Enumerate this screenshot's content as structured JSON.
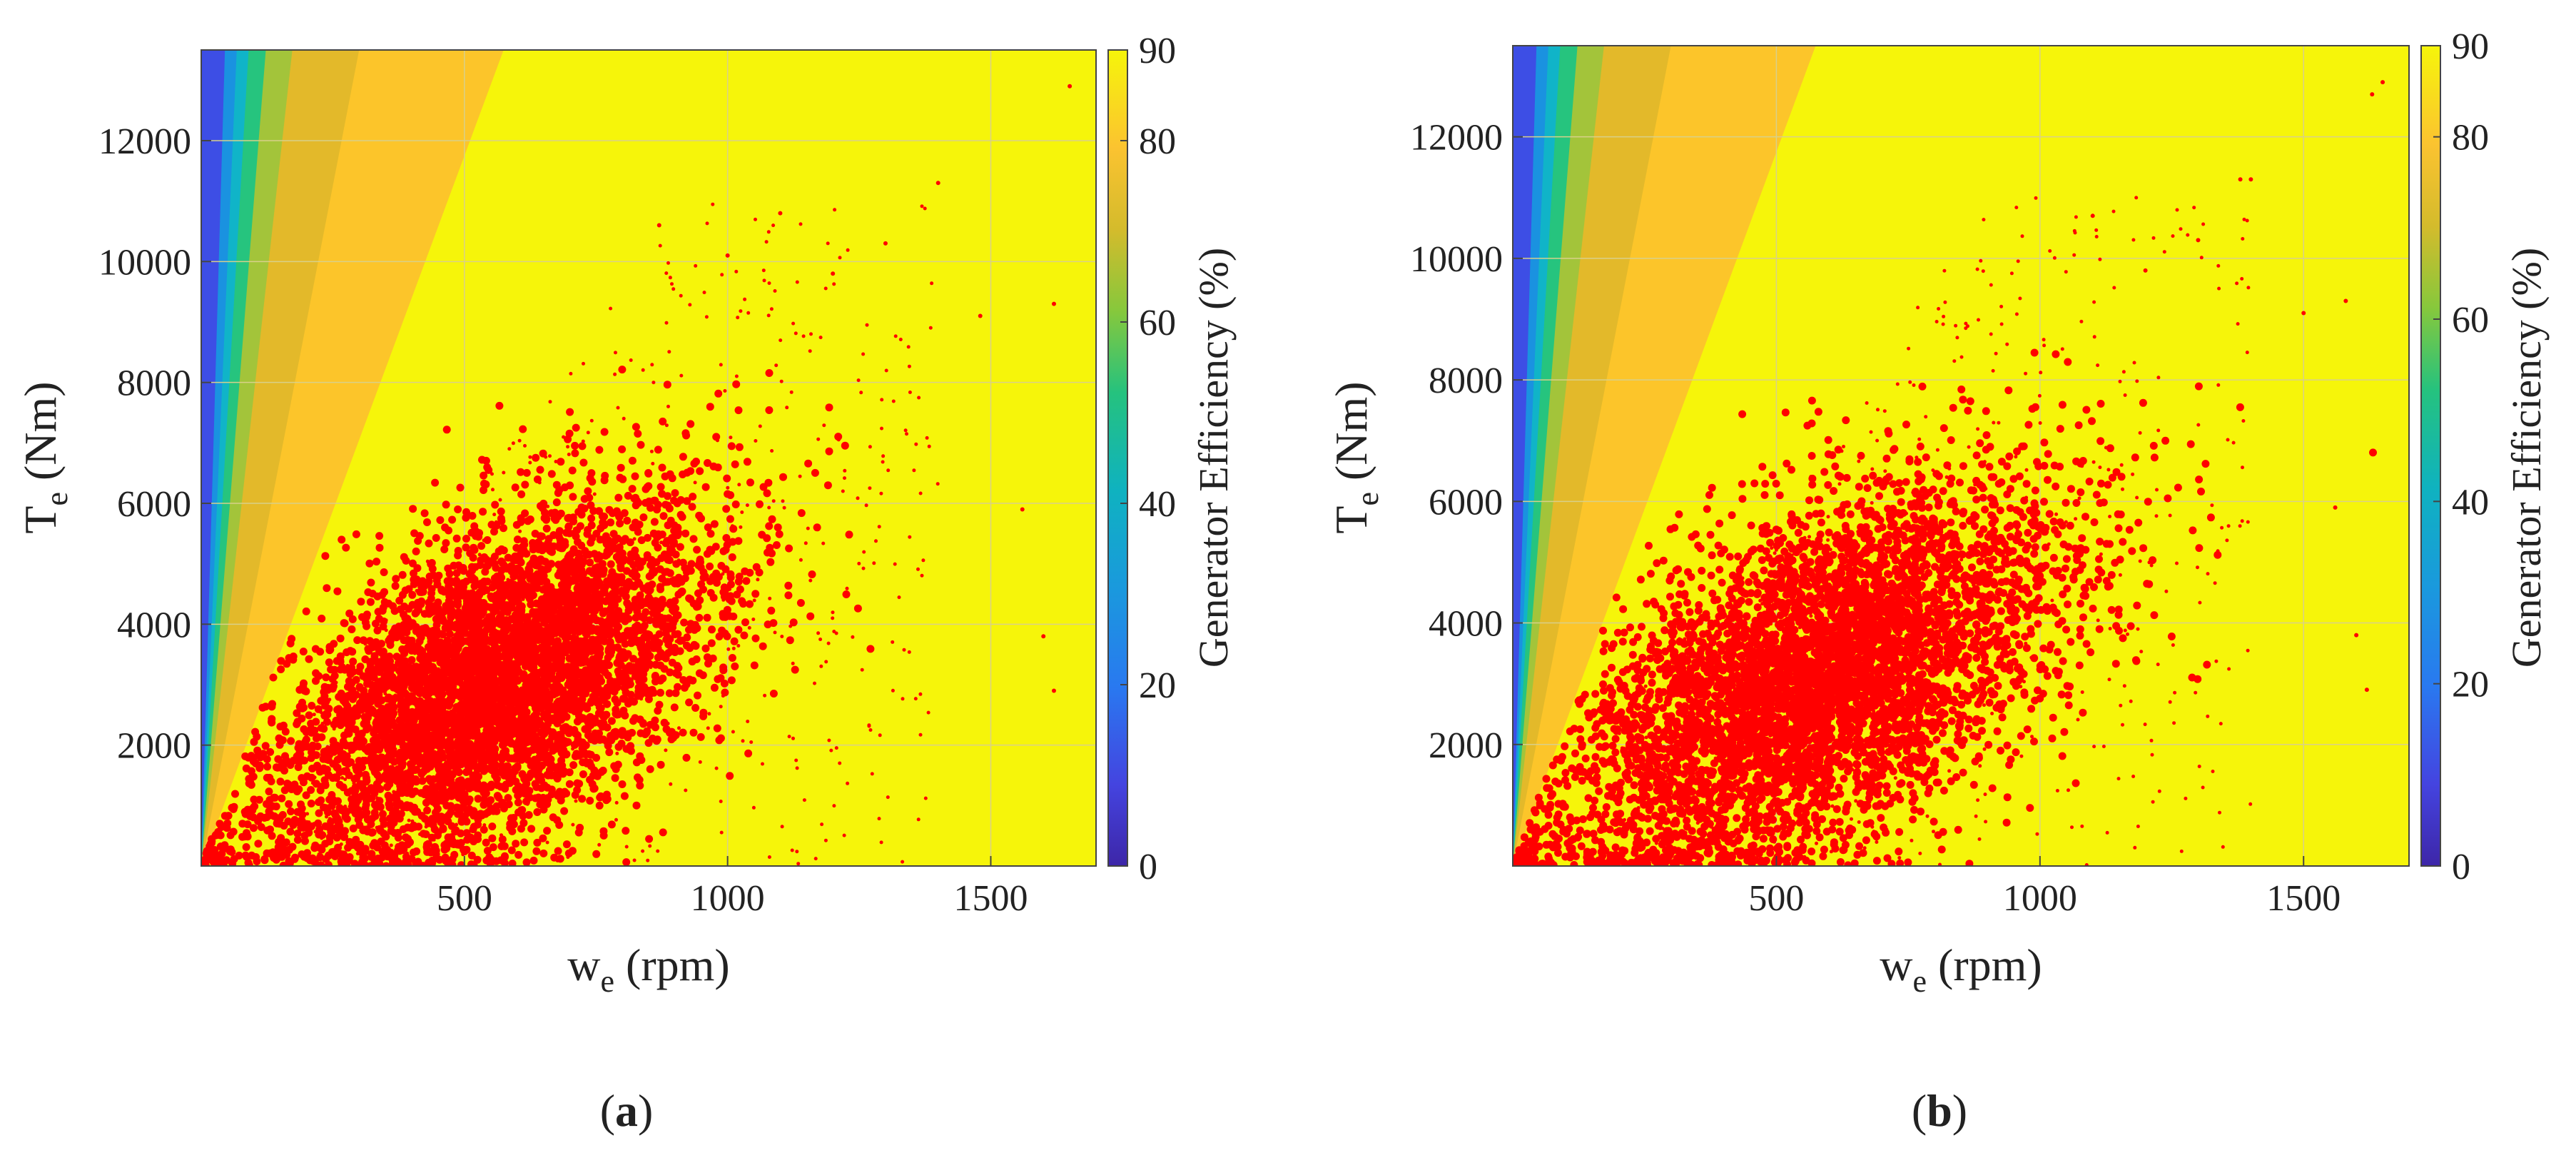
{
  "chart_data": [
    {
      "id": "a",
      "type": "scatter",
      "panel_label": "a",
      "background": "efficiency contour map",
      "xlabel": {
        "main": "w",
        "sub": "e",
        "unit": " (rpm)"
      },
      "ylabel": {
        "main": "T",
        "sub": "e",
        "unit": " (Nm)"
      },
      "xlim": [
        0,
        1700
      ],
      "ylim": [
        0,
        13500
      ],
      "xticks": [
        500,
        1000,
        1500
      ],
      "yticks": [
        2000,
        4000,
        6000,
        8000,
        10000,
        12000
      ],
      "colorbar": {
        "label": "Generator Efficiency (%)",
        "range": [
          0,
          90
        ],
        "ticks": [
          0,
          20,
          40,
          60,
          80,
          90
        ]
      },
      "efficiency_zones": [
        {
          "level": 0,
          "torque_per_rpm": 10000,
          "color": "#3d26a8"
        },
        {
          "level": 10,
          "torque_per_rpm": 300,
          "color": "#3d4ee5"
        },
        {
          "level": 25,
          "torque_per_rpm": 200,
          "color": "#1a92e0"
        },
        {
          "level": 40,
          "torque_per_rpm": 150,
          "color": "#10b4c8"
        },
        {
          "level": 55,
          "torque_per_rpm": 110,
          "color": "#26c47e"
        },
        {
          "level": 65,
          "torque_per_rpm": 78,
          "color": "#a3c43a"
        },
        {
          "level": 75,
          "torque_per_rpm": 45,
          "color": "#e3b92a"
        },
        {
          "level": 82,
          "torque_per_rpm": 23.5,
          "color": "#fcc52a"
        },
        {
          "level": 90,
          "torque_per_rpm": 0,
          "color": "#f6f50a"
        }
      ],
      "points": {
        "color": "#ff0000",
        "cluster_center": [
          560,
          3000
        ],
        "cluster_spread": [
          210,
          1500
        ],
        "approx_range_x": [
          0,
          1660
        ],
        "approx_range_y": [
          0,
          12900
        ],
        "outliers": [
          [
            1650,
            12900
          ],
          [
            1620,
            9300
          ],
          [
            1480,
            9100
          ],
          [
            1400,
            11300
          ],
          [
            1300,
            10300
          ],
          [
            1200,
            9800
          ],
          [
            1560,
            5900
          ],
          [
            1600,
            3800
          ],
          [
            1100,
            10800
          ],
          [
            1620,
            2900
          ],
          [
            1000,
            10100
          ],
          [
            870,
            10600
          ]
        ]
      }
    },
    {
      "id": "b",
      "type": "scatter",
      "panel_label": "b",
      "background": "efficiency contour map",
      "xlabel": {
        "main": "w",
        "sub": "e",
        "unit": " (rpm)"
      },
      "ylabel": {
        "main": "T",
        "sub": "e",
        "unit": " (Nm)"
      },
      "xlim": [
        0,
        1700
      ],
      "ylim": [
        0,
        13500
      ],
      "xticks": [
        500,
        1000,
        1500
      ],
      "yticks": [
        2000,
        4000,
        6000,
        8000,
        10000,
        12000
      ],
      "colorbar": {
        "label": "Generator Efficiency (%)",
        "range": [
          0,
          90
        ],
        "ticks": [
          0,
          20,
          40,
          60,
          80,
          90
        ]
      },
      "efficiency_zones": [
        {
          "level": 0,
          "torque_per_rpm": 10000,
          "color": "#3d26a8"
        },
        {
          "level": 10,
          "torque_per_rpm": 300,
          "color": "#3d4ee5"
        },
        {
          "level": 25,
          "torque_per_rpm": 200,
          "color": "#1a92e0"
        },
        {
          "level": 40,
          "torque_per_rpm": 150,
          "color": "#10b4c8"
        },
        {
          "level": 55,
          "torque_per_rpm": 110,
          "color": "#26c47e"
        },
        {
          "level": 65,
          "torque_per_rpm": 78,
          "color": "#a3c43a"
        },
        {
          "level": 75,
          "torque_per_rpm": 45,
          "color": "#e3b92a"
        },
        {
          "level": 82,
          "torque_per_rpm": 23.5,
          "color": "#fcc52a"
        },
        {
          "level": 90,
          "torque_per_rpm": 0,
          "color": "#f6f50a"
        }
      ],
      "points": {
        "color": "#ff0000",
        "cluster_center": [
          580,
          3100
        ],
        "cluster_spread": [
          230,
          1600
        ],
        "approx_range_x": [
          0,
          1660
        ],
        "approx_range_y": [
          0,
          12900
        ],
        "outliers": [
          [
            1650,
            12900
          ],
          [
            1630,
            12700
          ],
          [
            1580,
            9300
          ],
          [
            1500,
            9100
          ],
          [
            1400,
            11300
          ],
          [
            1300,
            10300
          ],
          [
            1200,
            9800
          ],
          [
            1560,
            5900
          ],
          [
            1600,
            3800
          ],
          [
            1100,
            10700
          ],
          [
            1620,
            2900
          ],
          [
            1380,
            11300
          ]
        ]
      }
    }
  ]
}
